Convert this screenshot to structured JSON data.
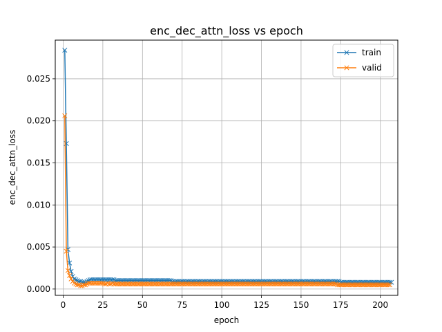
{
  "chart_data": {
    "type": "line",
    "title": "enc_dec_attn_loss vs epoch",
    "xlabel": "epoch",
    "ylabel": "enc_dec_attn_loss",
    "xlim": [
      -5.0,
      211.0
    ],
    "ylim": [
      -0.00075,
      0.0296
    ],
    "xticks": [
      0,
      25,
      50,
      75,
      100,
      125,
      150,
      175,
      200
    ],
    "yticks": [
      0.0,
      0.005,
      0.01,
      0.015,
      0.02,
      0.025
    ],
    "ytick_labels": [
      "0.000",
      "0.005",
      "0.010",
      "0.015",
      "0.020",
      "0.025"
    ],
    "grid": true,
    "legend_position": "top-right",
    "marker": "x",
    "series": [
      {
        "name": "train",
        "color": "#1f77b4",
        "values": [
          0.0284,
          0.0173,
          0.0047,
          0.0031,
          0.0021,
          0.0015,
          0.0012,
          0.0011,
          0.001,
          0.0009,
          0.0009,
          0.0008,
          0.0008,
          0.0008,
          0.0009,
          0.001,
          0.0011,
          0.0011,
          0.0011,
          0.0011,
          0.0011,
          0.0011,
          0.0011,
          0.0011,
          0.0011,
          0.0011,
          0.0011,
          0.0011,
          0.0011,
          0.0011,
          0.0011,
          0.0011,
          0.001,
          0.001,
          0.001,
          0.001,
          0.001,
          0.001,
          0.001,
          0.001,
          0.001,
          0.001,
          0.001,
          0.001,
          0.001,
          0.001,
          0.001,
          0.001,
          0.001,
          0.001,
          0.001,
          0.001,
          0.001,
          0.001,
          0.001,
          0.001,
          0.001,
          0.001,
          0.001,
          0.001,
          0.001,
          0.001,
          0.001,
          0.001,
          0.001,
          0.001,
          0.001,
          0.001,
          0.0009,
          0.0009,
          0.0009,
          0.0009,
          0.0009,
          0.0009,
          0.0009,
          0.0009,
          0.0009,
          0.0009,
          0.0009,
          0.0009,
          0.0009,
          0.0009,
          0.0009,
          0.0009,
          0.0009,
          0.0009,
          0.0009,
          0.0009,
          0.0009,
          0.0009,
          0.0009,
          0.0009,
          0.0009,
          0.0009,
          0.0009,
          0.0009,
          0.0009,
          0.0009,
          0.0009,
          0.0009,
          0.0009,
          0.0009,
          0.0009,
          0.0009,
          0.0009,
          0.0009,
          0.0009,
          0.0009,
          0.0009,
          0.0009,
          0.0009,
          0.0009,
          0.0009,
          0.0009,
          0.0009,
          0.0009,
          0.0009,
          0.0009,
          0.0009,
          0.0009,
          0.0009,
          0.0009,
          0.0009,
          0.0009,
          0.0009,
          0.0009,
          0.0009,
          0.0009,
          0.0009,
          0.0009,
          0.0009,
          0.0009,
          0.0009,
          0.0009,
          0.0009,
          0.0009,
          0.0009,
          0.0009,
          0.0009,
          0.0009,
          0.0009,
          0.0009,
          0.0009,
          0.0009,
          0.0009,
          0.0009,
          0.0009,
          0.0009,
          0.0009,
          0.0009,
          0.0009,
          0.0009,
          0.0009,
          0.0009,
          0.0009,
          0.0009,
          0.0009,
          0.0009,
          0.0009,
          0.0009,
          0.0009,
          0.0009,
          0.0009,
          0.0009,
          0.0009,
          0.0009,
          0.0009,
          0.0009,
          0.0009,
          0.0009,
          0.0009,
          0.0009,
          0.0009,
          0.0009,
          0.0008,
          0.0008,
          0.0008,
          0.0008,
          0.0008,
          0.0008,
          0.0008,
          0.0008,
          0.0008,
          0.0008,
          0.0008,
          0.0008,
          0.0008,
          0.0008,
          0.0008,
          0.0008,
          0.0008,
          0.0008,
          0.0008,
          0.0008,
          0.0008,
          0.0008,
          0.0008,
          0.0008,
          0.0008,
          0.0008,
          0.0008,
          0.0008,
          0.0008,
          0.0008,
          0.0008,
          0.0008,
          0.0008
        ]
      },
      {
        "name": "valid",
        "color": "#ff7f0e",
        "values": [
          0.0206,
          0.0045,
          0.0022,
          0.0016,
          0.0012,
          0.0009,
          0.0007,
          0.0006,
          0.0005,
          0.0005,
          0.0004,
          0.0004,
          0.0005,
          0.0005,
          0.0006,
          0.0007,
          0.0007,
          0.0007,
          0.0007,
          0.0007,
          0.0007,
          0.0007,
          0.0007,
          0.0007,
          0.0007,
          0.0006,
          0.0006,
          0.0007,
          0.0006,
          0.0006,
          0.0007,
          0.0006,
          0.0006,
          0.0006,
          0.0006,
          0.0006,
          0.0006,
          0.0006,
          0.0006,
          0.0006,
          0.0006,
          0.0006,
          0.0006,
          0.0006,
          0.0006,
          0.0006,
          0.0006,
          0.0006,
          0.0006,
          0.0006,
          0.0006,
          0.0006,
          0.0006,
          0.0006,
          0.0006,
          0.0006,
          0.0006,
          0.0006,
          0.0006,
          0.0006,
          0.0006,
          0.0006,
          0.0006,
          0.0006,
          0.0006,
          0.0006,
          0.0006,
          0.0006,
          0.0006,
          0.0006,
          0.0006,
          0.0006,
          0.0006,
          0.0006,
          0.0006,
          0.0006,
          0.0006,
          0.0006,
          0.0006,
          0.0006,
          0.0006,
          0.0006,
          0.0006,
          0.0006,
          0.0006,
          0.0006,
          0.0006,
          0.0006,
          0.0006,
          0.0006,
          0.0006,
          0.0006,
          0.0006,
          0.0006,
          0.0006,
          0.0006,
          0.0006,
          0.0006,
          0.0006,
          0.0006,
          0.0006,
          0.0006,
          0.0006,
          0.0006,
          0.0006,
          0.0006,
          0.0006,
          0.0006,
          0.0006,
          0.0006,
          0.0006,
          0.0006,
          0.0006,
          0.0006,
          0.0006,
          0.0006,
          0.0006,
          0.0006,
          0.0006,
          0.0006,
          0.0006,
          0.0006,
          0.0006,
          0.0006,
          0.0006,
          0.0006,
          0.0006,
          0.0006,
          0.0006,
          0.0006,
          0.0006,
          0.0006,
          0.0006,
          0.0006,
          0.0006,
          0.0006,
          0.0006,
          0.0006,
          0.0006,
          0.0006,
          0.0006,
          0.0006,
          0.0006,
          0.0006,
          0.0006,
          0.0006,
          0.0006,
          0.0006,
          0.0006,
          0.0006,
          0.0006,
          0.0006,
          0.0006,
          0.0006,
          0.0006,
          0.0006,
          0.0006,
          0.0006,
          0.0006,
          0.0006,
          0.0006,
          0.0006,
          0.0006,
          0.0006,
          0.0006,
          0.0006,
          0.0006,
          0.0006,
          0.0006,
          0.0006,
          0.0006,
          0.0006,
          0.0005,
          0.0005,
          0.0005,
          0.0005,
          0.0005,
          0.0005,
          0.0005,
          0.0005,
          0.0005,
          0.0005,
          0.0005,
          0.0005,
          0.0005,
          0.0005,
          0.0005,
          0.0005,
          0.0005,
          0.0005,
          0.0005,
          0.0005,
          0.0005,
          0.0005,
          0.0005,
          0.0005,
          0.0005,
          0.0005,
          0.0005,
          0.0005,
          0.0005,
          0.0005,
          0.0005,
          0.0005,
          0.0005,
          0.0005
        ]
      }
    ]
  }
}
